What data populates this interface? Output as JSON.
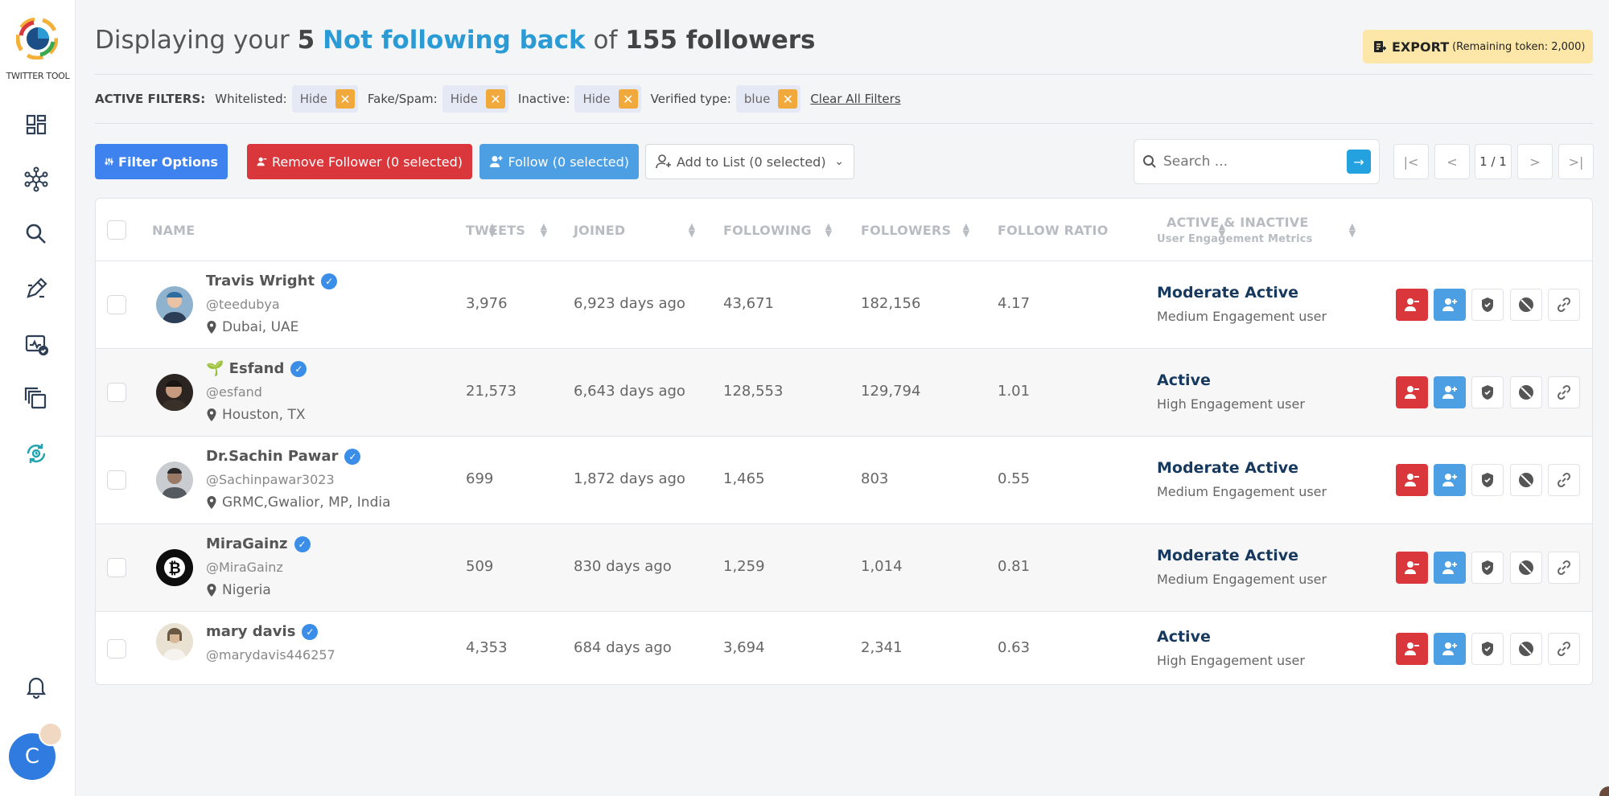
{
  "app": {
    "logo_text": "TWITTER TOOL",
    "user_initial": "C"
  },
  "header": {
    "title_prefix": "Displaying your ",
    "count": "5",
    "accent": "Not following back",
    "of": " of ",
    "total": "155 followers",
    "export_label": "EXPORT",
    "export_sub": "(Remaining token: 2,000)"
  },
  "filters": {
    "title": "ACTIVE FILTERS:",
    "items": [
      {
        "label": "Whitelisted:",
        "value": "Hide"
      },
      {
        "label": "Fake/Spam:",
        "value": "Hide"
      },
      {
        "label": "Inactive:",
        "value": "Hide"
      },
      {
        "label": "Verified type:",
        "value": "blue"
      }
    ],
    "clear_label": "Clear All Filters"
  },
  "toolbar": {
    "filter_label": "Filter Options",
    "remove_label": "Remove Follower (0 selected)",
    "follow_label": "Follow (0 selected)",
    "list_label": "Add to List (0 selected)",
    "search_placeholder": "Search ...",
    "page_label": "1 / 1"
  },
  "columns": {
    "name": "NAME",
    "tweets": "TWEETS",
    "joined": "JOINED",
    "following": "FOLLOWING",
    "followers": "FOLLOWERS",
    "ratio": "FOLLOW RATIO",
    "activity": "ACTIVE & INACTIVE",
    "activity_sub": "User Engagement Metrics"
  },
  "rows": [
    {
      "name": "Travis Wright",
      "handle": "@teedubya",
      "location": "Dubai, UAE",
      "tweets": "3,976",
      "joined": "6,923 days ago",
      "following": "43,671",
      "followers": "182,156",
      "ratio": "4.17",
      "status": "Moderate Active",
      "engagement": "Medium Engagement user"
    },
    {
      "name": "🌱 Esfand",
      "handle": "@esfand",
      "location": "Houston, TX",
      "tweets": "21,573",
      "joined": "6,643 days ago",
      "following": "128,553",
      "followers": "129,794",
      "ratio": "1.01",
      "status": "Active",
      "engagement": "High Engagement user"
    },
    {
      "name": "Dr.Sachin Pawar",
      "handle": "@Sachinpawar3023",
      "location": "GRMC,Gwalior, MP, India",
      "tweets": "699",
      "joined": "1,872 days ago",
      "following": "1,465",
      "followers": "803",
      "ratio": "0.55",
      "status": "Moderate Active",
      "engagement": "Medium Engagement user"
    },
    {
      "name": "MiraGainz",
      "handle": "@MiraGainz",
      "location": "Nigeria",
      "tweets": "509",
      "joined": "830 days ago",
      "following": "1,259",
      "followers": "1,014",
      "ratio": "0.81",
      "status": "Moderate Active",
      "engagement": "Medium Engagement user"
    },
    {
      "name": "mary davis",
      "handle": "@marydavis446257",
      "location": "",
      "tweets": "4,353",
      "joined": "684 days ago",
      "following": "3,694",
      "followers": "2,341",
      "ratio": "0.63",
      "status": "Active",
      "engagement": "High Engagement user"
    }
  ],
  "colors": {
    "accent": "#2a9bd5",
    "danger": "#d9373c",
    "primary": "#3d82ee",
    "follow": "#4d9fe4",
    "warning": "#f2a93b",
    "export": "#fde7a8"
  }
}
